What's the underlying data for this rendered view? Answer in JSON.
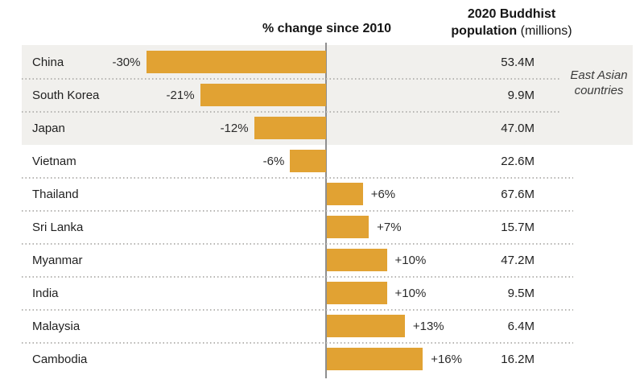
{
  "header": {
    "left_title": "% change since 2010",
    "right_title_bold_line1": "2020 Buddhist",
    "right_title_bold_line2": "population",
    "right_title_regular_line2": "(millions)"
  },
  "annotation": {
    "highlight_group_label": "East Asian countries"
  },
  "colors": {
    "bar": "#E1A233",
    "highlight_background": "#F1F0ED",
    "axis_line": "#8f8f8f"
  },
  "chart_data": {
    "type": "bar",
    "orientation": "horizontal",
    "title": "% change since 2010",
    "value_column_header": "2020 Buddhist population (millions)",
    "highlight_group": "East Asian countries",
    "axis": {
      "baseline_value": 0,
      "unit": "percent"
    },
    "rows": [
      {
        "country": "China",
        "pct_change": -30,
        "pct_label": "-30%",
        "population": "53.4M",
        "east_asian": true
      },
      {
        "country": "South Korea",
        "pct_change": -21,
        "pct_label": "-21%",
        "population": "9.9M",
        "east_asian": true
      },
      {
        "country": "Japan",
        "pct_change": -12,
        "pct_label": "-12%",
        "population": "47.0M",
        "east_asian": true
      },
      {
        "country": "Vietnam",
        "pct_change": -6,
        "pct_label": "-6%",
        "population": "22.6M",
        "east_asian": false
      },
      {
        "country": "Thailand",
        "pct_change": 6,
        "pct_label": "+6%",
        "population": "67.6M",
        "east_asian": false
      },
      {
        "country": "Sri Lanka",
        "pct_change": 7,
        "pct_label": "+7%",
        "population": "15.7M",
        "east_asian": false
      },
      {
        "country": "Myanmar",
        "pct_change": 10,
        "pct_label": "+10%",
        "population": "47.2M",
        "east_asian": false
      },
      {
        "country": "India",
        "pct_change": 10,
        "pct_label": "+10%",
        "population": "9.5M",
        "east_asian": false
      },
      {
        "country": "Malaysia",
        "pct_change": 13,
        "pct_label": "+13%",
        "population": "6.4M",
        "east_asian": false
      },
      {
        "country": "Cambodia",
        "pct_change": 16,
        "pct_label": "+16%",
        "population": "16.2M",
        "east_asian": false
      }
    ]
  }
}
